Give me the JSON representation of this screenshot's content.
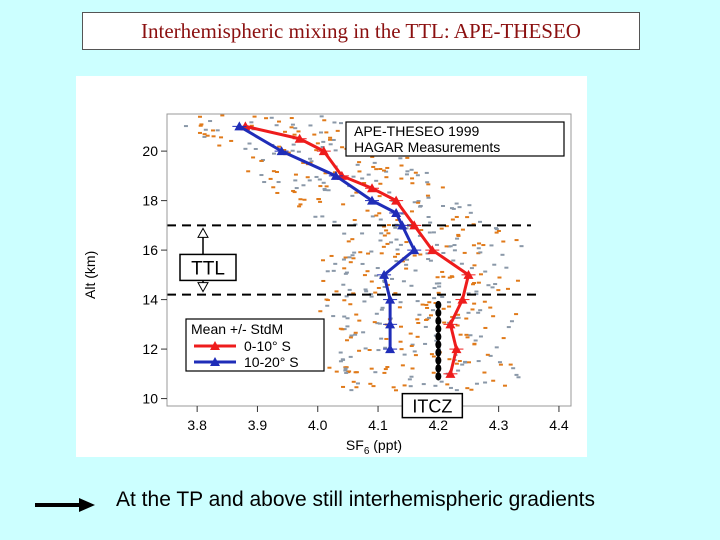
{
  "slide": {
    "title": "Interhemispheric mixing in the TTL: APE-THESEO",
    "caption": "At the TP and above still interhemispheric gradients"
  },
  "colors": {
    "background": "#ccffff",
    "title_text": "#8b1010",
    "south_0_10": "#ee1c1c",
    "south_10_20": "#1f2db8",
    "scatter_orange": "#e07a1a",
    "scatter_gray": "#8a98a8"
  },
  "icons": {
    "caption_arrow": "right-arrow-icon"
  },
  "chart_data": {
    "type": "line",
    "title": "",
    "xlabel": "SF6 (ppt)",
    "xlabel_main": "SF",
    "xlabel_sub": "6",
    "xlabel_unit": " (ppt)",
    "ylabel": "Alt (km)",
    "xlim": [
      3.75,
      4.42
    ],
    "ylim": [
      9.7,
      21.5
    ],
    "xticks": [
      3.8,
      3.9,
      4.0,
      4.1,
      4.2,
      4.3,
      4.4
    ],
    "yticks": [
      10,
      12,
      14,
      16,
      18,
      20
    ],
    "grid": false,
    "legend": {
      "position": "bottom-left",
      "title": "Mean +/- StdM"
    },
    "info_box": [
      "APE-THESEO 1999",
      "HAGAR Measurements"
    ],
    "annotations": {
      "ttl_label": "TTL",
      "ttl_top_km": 17,
      "ttl_bottom_km": 14.2,
      "itcz_label": "ITCZ",
      "itcz_x": 4.2
    },
    "series": [
      {
        "name": "0-10° S",
        "color": "#ee1c1c",
        "points": [
          {
            "x": 3.88,
            "y": 21.0
          },
          {
            "x": 3.97,
            "y": 20.5
          },
          {
            "x": 4.01,
            "y": 20.0
          },
          {
            "x": 4.04,
            "y": 19.0
          },
          {
            "x": 4.09,
            "y": 18.5
          },
          {
            "x": 4.13,
            "y": 18.0
          },
          {
            "x": 4.16,
            "y": 17.0
          },
          {
            "x": 4.19,
            "y": 16.0
          },
          {
            "x": 4.25,
            "y": 15.0
          },
          {
            "x": 4.24,
            "y": 14.0
          },
          {
            "x": 4.22,
            "y": 13.0
          },
          {
            "x": 4.23,
            "y": 12.0
          },
          {
            "x": 4.22,
            "y": 11.0
          }
        ]
      },
      {
        "name": "10-20° S",
        "color": "#1f2db8",
        "points": [
          {
            "x": 3.87,
            "y": 21.0
          },
          {
            "x": 3.94,
            "y": 20.0
          },
          {
            "x": 4.03,
            "y": 19.0
          },
          {
            "x": 4.09,
            "y": 18.0
          },
          {
            "x": 4.13,
            "y": 17.5
          },
          {
            "x": 4.14,
            "y": 17.0
          },
          {
            "x": 4.16,
            "y": 16.0
          },
          {
            "x": 4.11,
            "y": 15.0
          },
          {
            "x": 4.12,
            "y": 14.0
          },
          {
            "x": 4.12,
            "y": 13.0
          },
          {
            "x": 4.12,
            "y": 12.0
          }
        ]
      }
    ]
  }
}
